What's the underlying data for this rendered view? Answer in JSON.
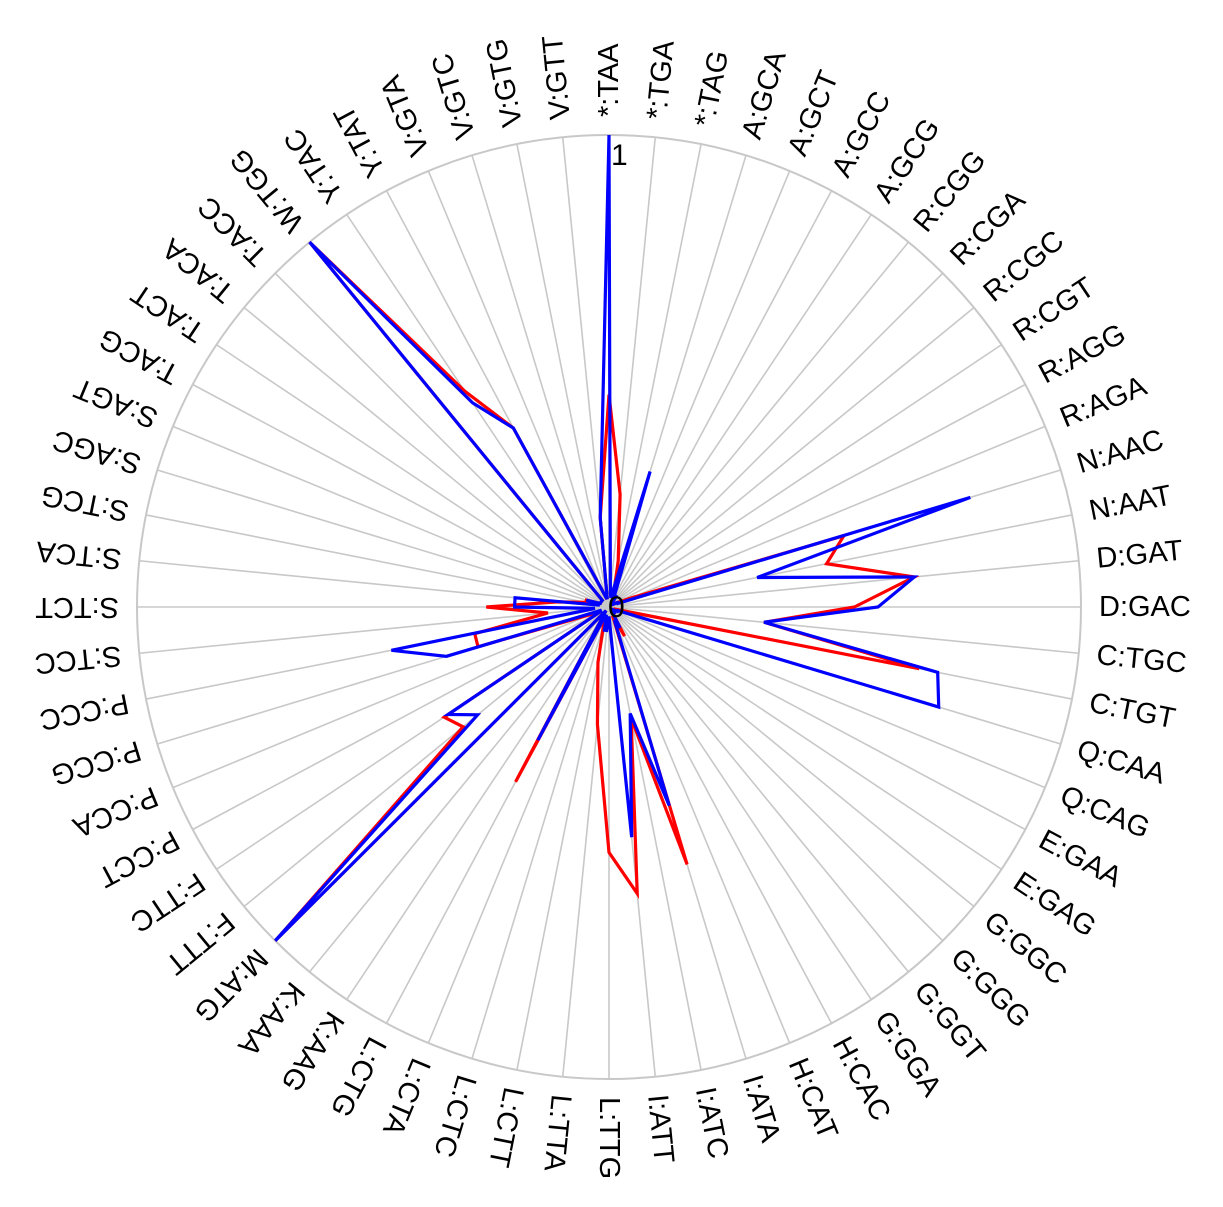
{
  "chart_data": {
    "type": "radar",
    "rlim": [
      0,
      1
    ],
    "radial_tick_labels": [
      "0",
      "1"
    ],
    "grid": true,
    "categories": [
      "*:TAA",
      "*:TGA",
      "*:TAG",
      "A:GCA",
      "A:GCT",
      "A:GCC",
      "A:GCG",
      "R:CGG",
      "R:CGA",
      "R:CGC",
      "R:CGT",
      "R:AGG",
      "R:AGA",
      "N:AAC",
      "N:AAT",
      "D:GAT",
      "D:GAC",
      "C:TGC",
      "C:TGT",
      "Q:CAA",
      "Q:CAG",
      "E:GAA",
      "E:GAG",
      "G:GGC",
      "G:GGG",
      "G:GGT",
      "G:GGA",
      "H:CAC",
      "H:CAT",
      "I:ATA",
      "I:ATC",
      "I:ATT",
      "L:TTG",
      "L:TTA",
      "L:CTT",
      "L:CTC",
      "L:CTA",
      "L:CTG",
      "K:AAG",
      "K:AAA",
      "M:ATG",
      "F:TTT",
      "F:TTC",
      "P:CCT",
      "P:CCA",
      "P:CCG",
      "P:CCC",
      "S:TCC",
      "S:TCT",
      "S:TCA",
      "S:TCG",
      "S:AGC",
      "S:AGT",
      "T:ACG",
      "T:ACT",
      "T:ACA",
      "T:ACC",
      "W:TGG",
      "Y:TAC",
      "Y:TAT",
      "V:GTA",
      "V:GTC",
      "V:GTG",
      "V:GTT"
    ],
    "series": [
      {
        "color": "#ff0000",
        "values": [
          0.45,
          0.24,
          0.1,
          0.04,
          0.02,
          0.02,
          0.03,
          0.01,
          0.01,
          0.01,
          0.01,
          0.02,
          0.05,
          0.52,
          0.47,
          0.65,
          0.52,
          0.33,
          0.67,
          0.02,
          0.01,
          0.02,
          0.01,
          0.01,
          0.01,
          0.02,
          0.01,
          0.07,
          0.02,
          0.57,
          0.24,
          0.61,
          0.52,
          0.25,
          0.12,
          0.04,
          0.02,
          0.42,
          0.02,
          0.01,
          1.0,
          0.4,
          0.42,
          0.02,
          0.04,
          0.29,
          0.29,
          0.13,
          0.26,
          0.11,
          0.05,
          0.05,
          0.02,
          0.02,
          0.02,
          0.02,
          0.02,
          1.0,
          0.55,
          0.43,
          0.04,
          0.02,
          0.02,
          0.19
        ]
      },
      {
        "color": "#0000ff",
        "values": [
          1.0,
          0.03,
          0.02,
          0.3,
          0.04,
          0.02,
          0.03,
          0.01,
          0.01,
          0.01,
          0.01,
          0.02,
          0.02,
          0.8,
          0.32,
          0.65,
          0.57,
          0.33,
          0.71,
          0.73,
          0.02,
          0.02,
          0.01,
          0.01,
          0.01,
          0.02,
          0.01,
          0.05,
          0.03,
          0.44,
          0.23,
          0.49,
          0.02,
          0.05,
          0.05,
          0.02,
          0.02,
          0.32,
          0.02,
          0.01,
          1.0,
          0.36,
          0.41,
          0.02,
          0.02,
          0.36,
          0.47,
          0.03,
          0.2,
          0.2,
          0.02,
          0.05,
          0.02,
          0.02,
          0.02,
          0.02,
          0.02,
          1.0,
          0.52,
          0.43,
          0.04,
          0.02,
          0.02,
          0.19
        ]
      }
    ]
  }
}
